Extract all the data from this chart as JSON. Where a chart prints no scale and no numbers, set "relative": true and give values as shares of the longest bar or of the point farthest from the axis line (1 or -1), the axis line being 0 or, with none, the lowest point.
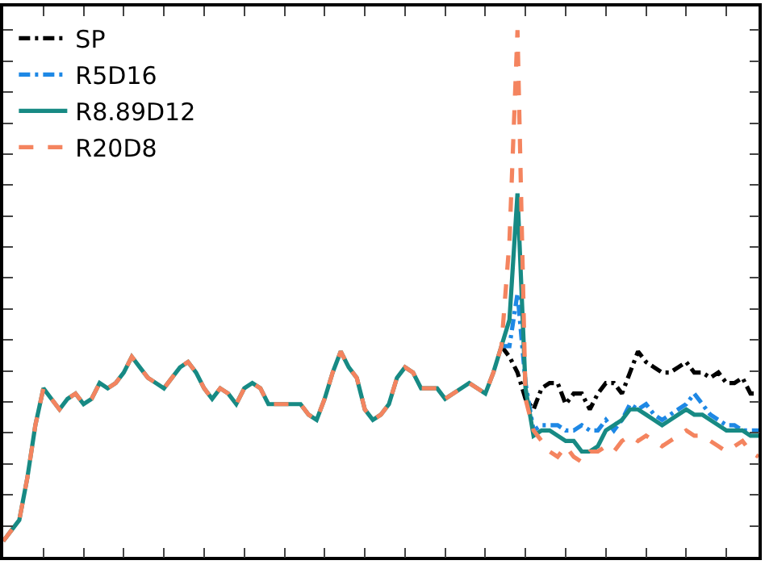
{
  "chart_data": {
    "type": "line",
    "relative": true,
    "tick_labels": false,
    "legend": "top left",
    "marker": "none",
    "categories": [
      null,
      null,
      null,
      null,
      null,
      null,
      null,
      null,
      null,
      null,
      null,
      null,
      null,
      null,
      null,
      null,
      null,
      null,
      null,
      null,
      null,
      null,
      null,
      null,
      null,
      null,
      null,
      null,
      null,
      null,
      null,
      null,
      null,
      null,
      null,
      null,
      null,
      null,
      null,
      null,
      null,
      null,
      null,
      null,
      null,
      null,
      null,
      null,
      null,
      null,
      null,
      null,
      null,
      null,
      null,
      null,
      null,
      null,
      null,
      null,
      null,
      null,
      null,
      null,
      null,
      null,
      null,
      null,
      null,
      null,
      null,
      null,
      null,
      null,
      null,
      null,
      null,
      null,
      null,
      null,
      null,
      null,
      null,
      null,
      null,
      null,
      null,
      null,
      null,
      null,
      null,
      null,
      null,
      null,
      null
    ],
    "series": [
      {
        "name": "SP",
        "color": "#000000",
        "line_style": "dashdot",
        "values": [
          null,
          null,
          null,
          null,
          null,
          null,
          null,
          null,
          null,
          null,
          null,
          null,
          null,
          null,
          null,
          null,
          null,
          null,
          null,
          null,
          null,
          null,
          null,
          null,
          null,
          null,
          null,
          null,
          null,
          null,
          null,
          null,
          null,
          null,
          null,
          null,
          null,
          null,
          null,
          null,
          null,
          null,
          null,
          null,
          null,
          null,
          null,
          null,
          null,
          null,
          null,
          null,
          null,
          null,
          null,
          null,
          null,
          null,
          null,
          null,
          null,
          null,
          0.4,
          0.38,
          0.35,
          0.3,
          0.28,
          0.32,
          0.33,
          0.33,
          0.29,
          0.31,
          0.31,
          0.28,
          0.31,
          0.33,
          0.33,
          0.31,
          0.35,
          0.39,
          0.37,
          0.36,
          0.35,
          0.35,
          0.36,
          0.37,
          0.35,
          0.35,
          0.34,
          0.35,
          0.33,
          0.33,
          0.34,
          0.31,
          0.31
        ]
      },
      {
        "name": "R5D16",
        "color": "#1e88e5",
        "line_style": "dashdot",
        "values": [
          null,
          null,
          null,
          null,
          null,
          null,
          null,
          null,
          null,
          null,
          null,
          null,
          null,
          null,
          null,
          null,
          null,
          null,
          null,
          null,
          null,
          null,
          null,
          null,
          null,
          null,
          null,
          null,
          null,
          null,
          null,
          null,
          null,
          null,
          null,
          null,
          null,
          null,
          null,
          null,
          null,
          null,
          null,
          null,
          null,
          null,
          null,
          null,
          null,
          null,
          null,
          null,
          null,
          null,
          null,
          null,
          null,
          null,
          null,
          null,
          null,
          null,
          0.4,
          0.4,
          0.5,
          0.33,
          0.24,
          0.25,
          0.25,
          0.25,
          0.24,
          0.24,
          0.25,
          0.24,
          0.24,
          0.26,
          0.24,
          0.26,
          0.29,
          0.28,
          0.29,
          0.27,
          0.26,
          0.27,
          0.28,
          0.29,
          0.31,
          0.29,
          0.27,
          0.26,
          0.25,
          0.25,
          0.24,
          0.24,
          0.24
        ]
      },
      {
        "name": "R8.89D12",
        "color": "#178a84",
        "line_style": "solid",
        "values": [
          0.03,
          0.05,
          0.07,
          0.15,
          0.25,
          0.32,
          0.3,
          0.28,
          0.3,
          0.31,
          0.29,
          0.3,
          0.33,
          0.32,
          0.33,
          0.35,
          0.38,
          0.36,
          0.34,
          0.33,
          0.32,
          0.34,
          0.36,
          0.37,
          0.35,
          0.32,
          0.3,
          0.32,
          0.31,
          0.29,
          0.32,
          0.33,
          0.32,
          0.29,
          0.29,
          0.29,
          0.29,
          0.29,
          0.27,
          0.26,
          0.3,
          0.35,
          0.39,
          0.36,
          0.34,
          0.28,
          0.26,
          0.27,
          0.29,
          0.34,
          0.36,
          0.35,
          0.32,
          0.32,
          0.32,
          0.3,
          0.31,
          0.32,
          0.33,
          0.32,
          0.31,
          0.35,
          0.4,
          0.45,
          0.69,
          0.32,
          0.23,
          0.24,
          0.24,
          0.23,
          0.22,
          0.22,
          0.2,
          0.2,
          0.21,
          0.24,
          0.25,
          0.26,
          0.28,
          0.28,
          0.27,
          0.26,
          0.25,
          0.26,
          0.27,
          0.28,
          0.27,
          0.27,
          0.26,
          0.25,
          0.24,
          0.24,
          0.24,
          0.23,
          0.23
        ]
      },
      {
        "name": "R20D8",
        "color": "#f4845f",
        "line_style": "dashed",
        "values": [
          0.03,
          0.05,
          0.07,
          0.15,
          0.25,
          0.32,
          0.3,
          0.28,
          0.3,
          0.31,
          0.29,
          0.3,
          0.33,
          0.32,
          0.33,
          0.35,
          0.38,
          0.36,
          0.34,
          0.33,
          0.32,
          0.34,
          0.36,
          0.37,
          0.35,
          0.32,
          0.3,
          0.32,
          0.31,
          0.29,
          0.32,
          0.33,
          0.32,
          0.29,
          0.29,
          0.29,
          0.29,
          0.29,
          0.27,
          0.26,
          0.3,
          0.35,
          0.39,
          0.36,
          0.34,
          0.28,
          0.26,
          0.27,
          0.29,
          0.34,
          0.36,
          0.35,
          0.32,
          0.32,
          0.32,
          0.3,
          0.31,
          0.32,
          0.33,
          0.32,
          0.31,
          0.35,
          0.4,
          0.6,
          1.0,
          0.3,
          0.24,
          0.22,
          0.2,
          0.19,
          0.21,
          0.19,
          0.18,
          0.2,
          0.2,
          0.21,
          0.2,
          0.22,
          0.23,
          0.22,
          0.23,
          0.22,
          0.21,
          0.22,
          0.23,
          0.24,
          0.23,
          0.23,
          0.22,
          0.21,
          0.2,
          0.21,
          0.22,
          0.2,
          0.19
        ]
      }
    ]
  }
}
